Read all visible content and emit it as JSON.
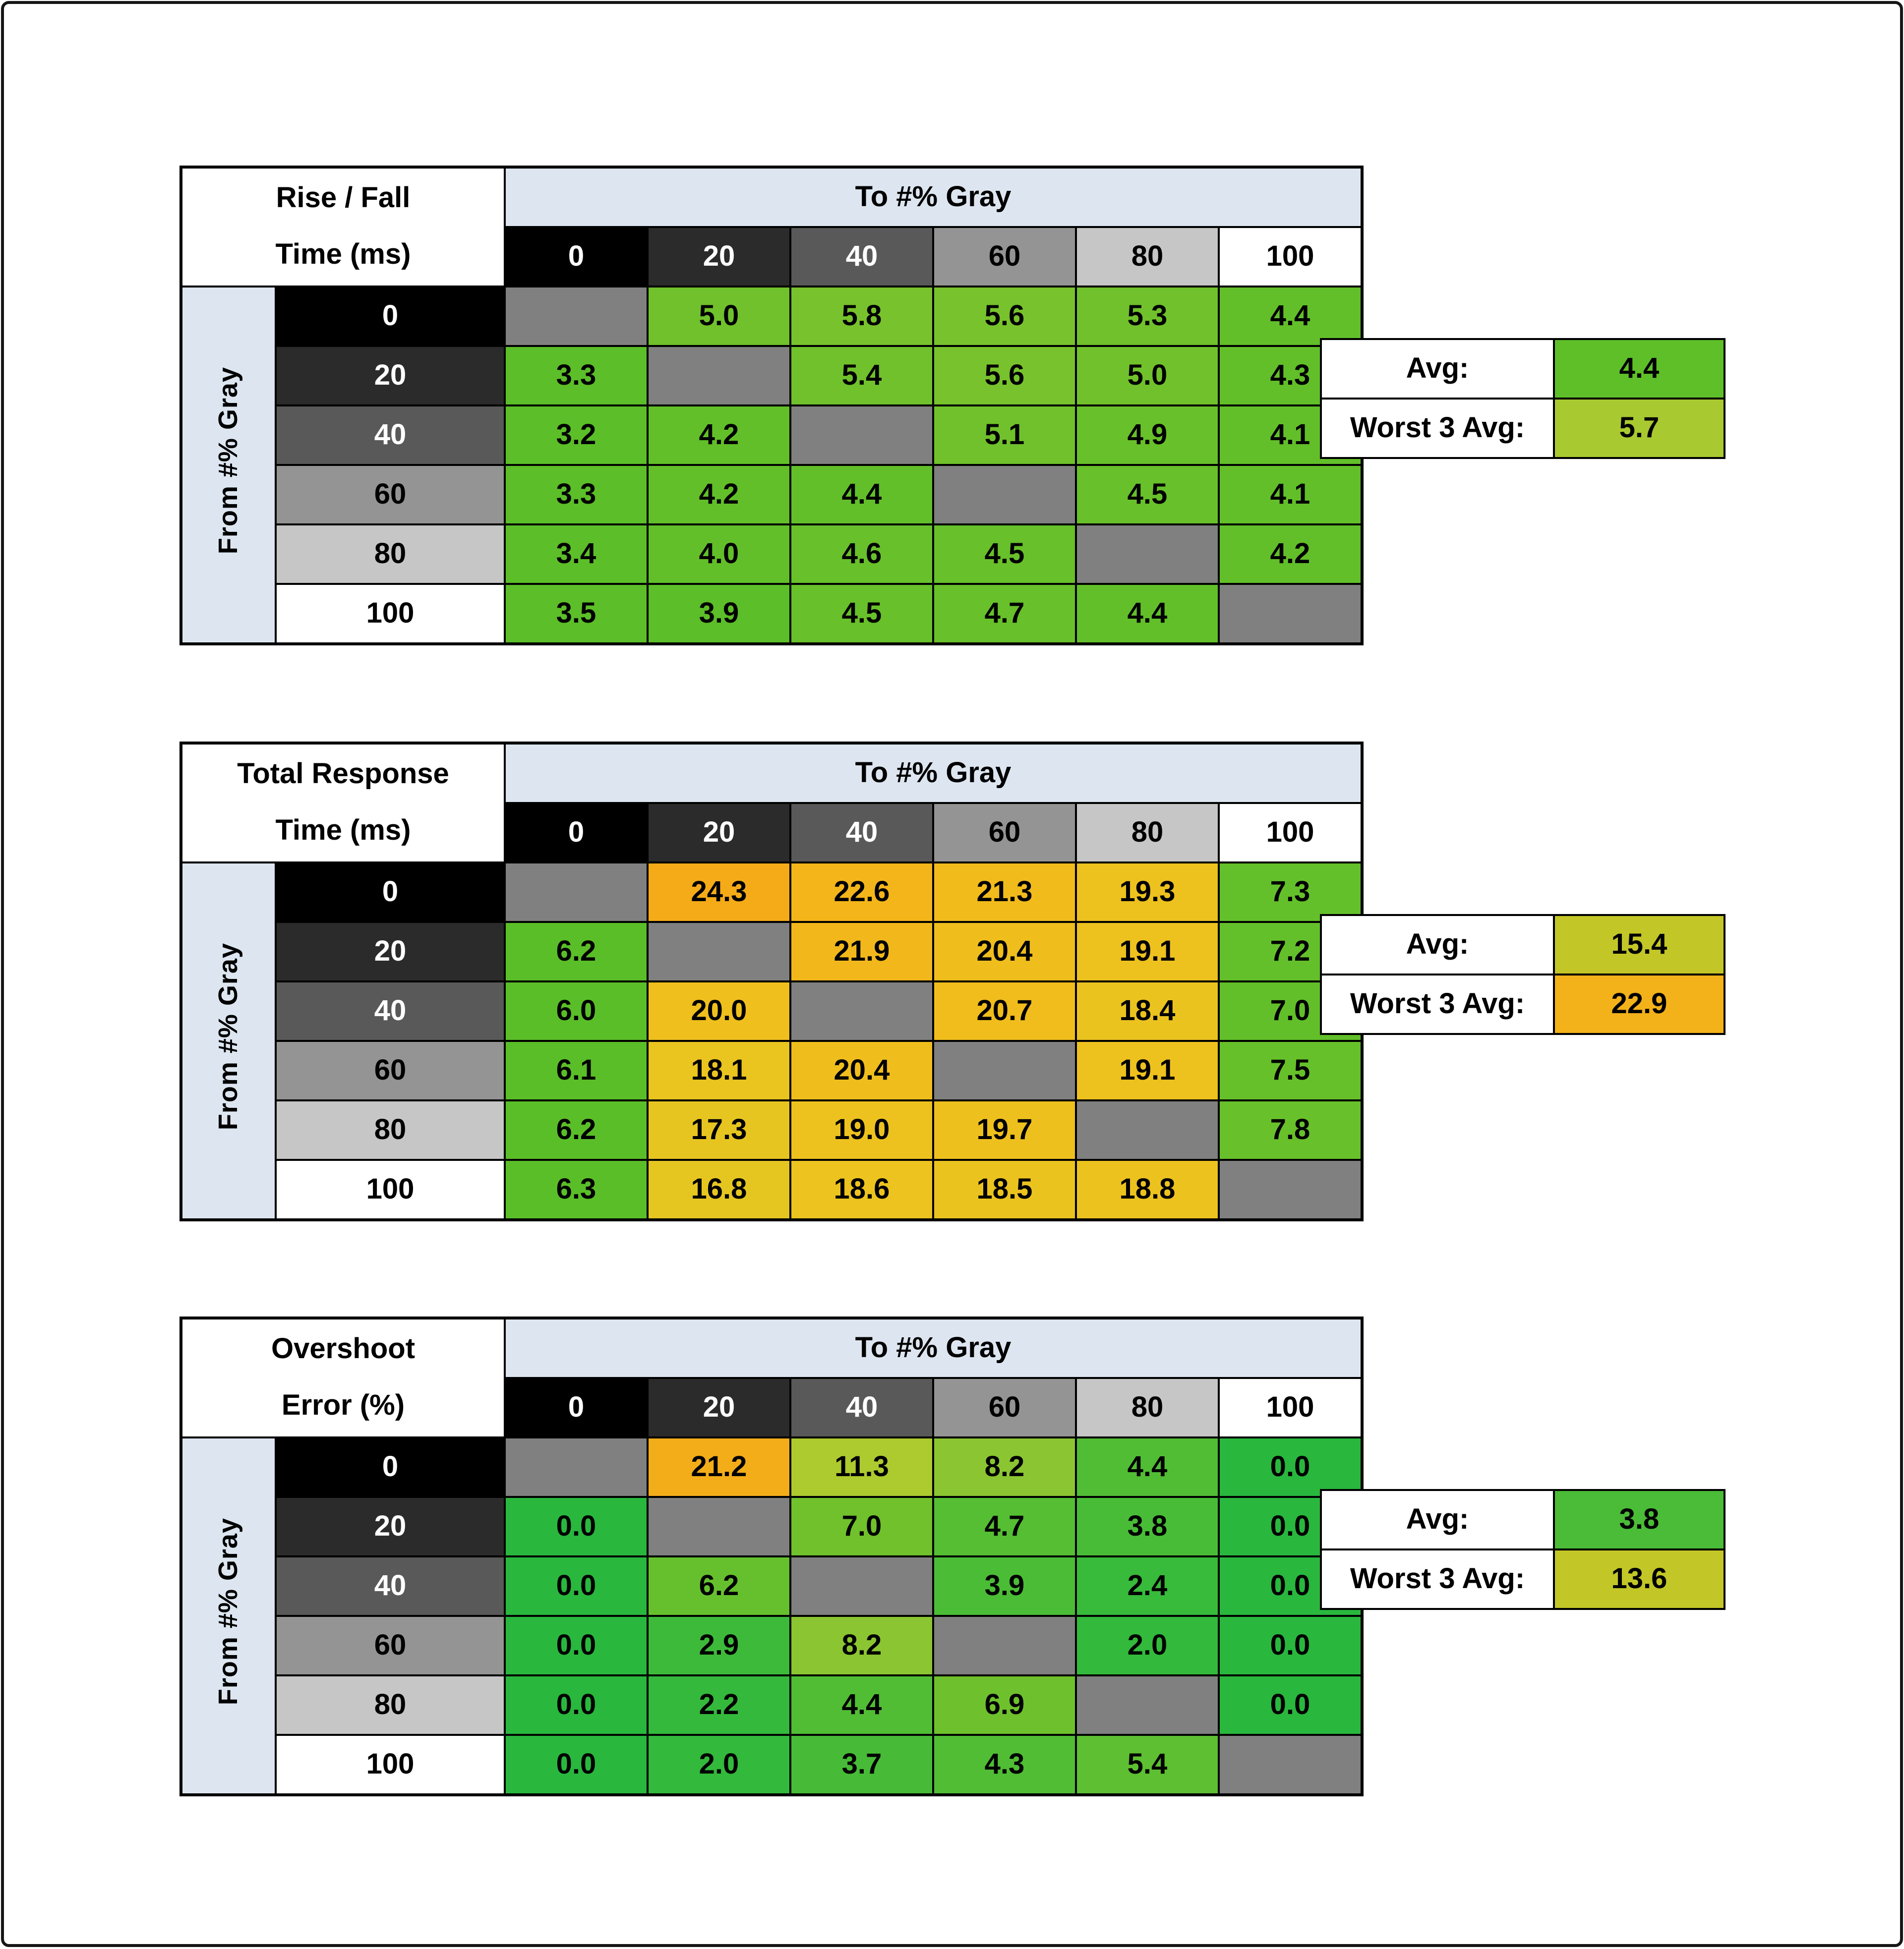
{
  "shared": {
    "to_header": "To #% Gray",
    "from_header": "From #% Gray",
    "avg_label": "Avg:",
    "worst_label": "Worst 3 Avg:",
    "header_bg": "#dde6f0",
    "diagonal_color": "#808080",
    "level_styles": [
      {
        "bg": "#000000",
        "fg": "#ffffff"
      },
      {
        "bg": "#2b2b2b",
        "fg": "#ffffff"
      },
      {
        "bg": "#595959",
        "fg": "#ffffff"
      },
      {
        "bg": "#949494",
        "fg": "#000000"
      },
      {
        "bg": "#c6c6c6",
        "fg": "#000000"
      },
      {
        "bg": "#ffffff",
        "fg": "#000000"
      }
    ]
  },
  "chart_data": [
    {
      "type": "heatmap",
      "title": "Rise / Fall Time (ms)",
      "title_line1": "Rise / Fall",
      "title_line2": "Time (ms)",
      "x_label": "To #% Gray",
      "y_label": "From #% Gray",
      "categories": [
        "0",
        "20",
        "40",
        "60",
        "80",
        "100"
      ],
      "rows": [
        {
          "from": "0",
          "values": [
            null,
            "5.0",
            "5.8",
            "5.6",
            "5.3",
            "4.4"
          ],
          "colors": [
            null,
            "#70c12b",
            "#78c22d",
            "#78c22d",
            "#70c12b",
            "#62bf29"
          ]
        },
        {
          "from": "20",
          "values": [
            "3.3",
            null,
            "5.4",
            "5.6",
            "5.0",
            "4.3"
          ],
          "colors": [
            "#5cbe28",
            null,
            "#70c12b",
            "#78c22d",
            "#70c12b",
            "#62bf29"
          ]
        },
        {
          "from": "40",
          "values": [
            "3.2",
            "4.2",
            null,
            "5.1",
            "4.9",
            "4.1"
          ],
          "colors": [
            "#5cbe28",
            "#62bf29",
            null,
            "#70c12b",
            "#68c02a",
            "#62bf29"
          ]
        },
        {
          "from": "60",
          "values": [
            "3.3",
            "4.2",
            "4.4",
            null,
            "4.5",
            "4.1"
          ],
          "colors": [
            "#5cbe28",
            "#62bf29",
            "#62bf29",
            null,
            "#68c02a",
            "#62bf29"
          ]
        },
        {
          "from": "80",
          "values": [
            "3.4",
            "4.0",
            "4.6",
            "4.5",
            null,
            "4.2"
          ],
          "colors": [
            "#5cbe28",
            "#62bf29",
            "#68c02a",
            "#68c02a",
            null,
            "#62bf29"
          ]
        },
        {
          "from": "100",
          "values": [
            "3.5",
            "3.9",
            "4.5",
            "4.7",
            "4.4",
            null
          ],
          "colors": [
            "#5cbe28",
            "#5cbe28",
            "#68c02a",
            "#68c02a",
            "#62bf29",
            null
          ]
        }
      ],
      "avg": {
        "value": "4.4",
        "color": "#5fbf29"
      },
      "worst3": {
        "value": "5.7",
        "color": "#a9c930"
      }
    },
    {
      "type": "heatmap",
      "title": "Total Response Time (ms)",
      "title_line1": "Total Response",
      "title_line2": "Time (ms)",
      "x_label": "To #% Gray",
      "y_label": "From #% Gray",
      "categories": [
        "0",
        "20",
        "40",
        "60",
        "80",
        "100"
      ],
      "rows": [
        {
          "from": "0",
          "values": [
            null,
            "24.3",
            "22.6",
            "21.3",
            "19.3",
            "7.3"
          ],
          "colors": [
            null,
            "#f5ab18",
            "#f3b51a",
            "#f1bb1c",
            "#edc11e",
            "#64c02a"
          ]
        },
        {
          "from": "20",
          "values": [
            "6.2",
            null,
            "21.9",
            "20.4",
            "19.1",
            "7.2"
          ],
          "colors": [
            "#5abe28",
            null,
            "#f2b81b",
            "#efbe1d",
            "#edc11e",
            "#64c02a"
          ]
        },
        {
          "from": "40",
          "values": [
            "6.0",
            "20.0",
            null,
            "20.7",
            "18.4",
            "7.0"
          ],
          "colors": [
            "#5abe28",
            "#efbf1d",
            null,
            "#f0bd1c",
            "#ebc31f",
            "#62bf29"
          ]
        },
        {
          "from": "60",
          "values": [
            "6.1",
            "18.1",
            "20.4",
            null,
            "19.1",
            "7.5"
          ],
          "colors": [
            "#5abe28",
            "#eac41f",
            "#efbe1d",
            null,
            "#edc11e",
            "#66c02a"
          ]
        },
        {
          "from": "80",
          "values": [
            "6.2",
            "17.3",
            "19.0",
            "19.7",
            null,
            "7.8"
          ],
          "colors": [
            "#5abe28",
            "#e7c520",
            "#edc21e",
            "#eec01d",
            null,
            "#68c02b"
          ]
        },
        {
          "from": "100",
          "values": [
            "6.3",
            "16.8",
            "18.6",
            "18.5",
            "18.8",
            null
          ],
          "colors": [
            "#5abe28",
            "#e5c621",
            "#ecc31f",
            "#ebc31f",
            "#ecc21e",
            null
          ]
        }
      ],
      "avg": {
        "value": "15.4",
        "color": "#c3c627"
      },
      "worst3": {
        "value": "22.9",
        "color": "#f3b11a"
      }
    },
    {
      "type": "heatmap",
      "title": "Overshoot Error (%)",
      "title_line1": "Overshoot",
      "title_line2": "Error (%)",
      "x_label": "To #% Gray",
      "y_label": "From #% Gray",
      "categories": [
        "0",
        "20",
        "40",
        "60",
        "80",
        "100"
      ],
      "rows": [
        {
          "from": "0",
          "values": [
            null,
            "21.2",
            "11.3",
            "8.2",
            "4.4",
            "0.0"
          ],
          "colors": [
            null,
            "#f3ad19",
            "#adca2e",
            "#8bc531",
            "#51bd34",
            "#29b73e"
          ]
        },
        {
          "from": "20",
          "values": [
            "0.0",
            null,
            "7.0",
            "4.7",
            "3.8",
            "0.0"
          ],
          "colors": [
            "#29b73e",
            null,
            "#70c12b",
            "#55be33",
            "#49bc37",
            "#29b73e"
          ]
        },
        {
          "from": "40",
          "values": [
            "0.0",
            "6.2",
            null,
            "3.9",
            "2.4",
            "0.0"
          ],
          "colors": [
            "#29b73e",
            "#66c02e",
            null,
            "#4bbc36",
            "#38ba3b",
            "#29b73e"
          ]
        },
        {
          "from": "60",
          "values": [
            "0.0",
            "2.9",
            "8.2",
            null,
            "2.0",
            "0.0"
          ],
          "colors": [
            "#29b73e",
            "#3eba3a",
            "#8bc531",
            null,
            "#33b93c",
            "#29b73e"
          ]
        },
        {
          "from": "80",
          "values": [
            "0.0",
            "2.2",
            "4.4",
            "6.9",
            null,
            "0.0"
          ],
          "colors": [
            "#29b73e",
            "#35b93c",
            "#51bd34",
            "#6ec12c",
            null,
            "#29b73e"
          ]
        },
        {
          "from": "100",
          "values": [
            "0.0",
            "2.0",
            "3.7",
            "4.3",
            "5.4",
            null
          ],
          "colors": [
            "#29b73e",
            "#33b93c",
            "#47bb37",
            "#50bd35",
            "#5dbf31",
            null
          ]
        }
      ],
      "avg": {
        "value": "3.8",
        "color": "#4abc37"
      },
      "worst3": {
        "value": "13.6",
        "color": "#c2c626"
      }
    }
  ]
}
